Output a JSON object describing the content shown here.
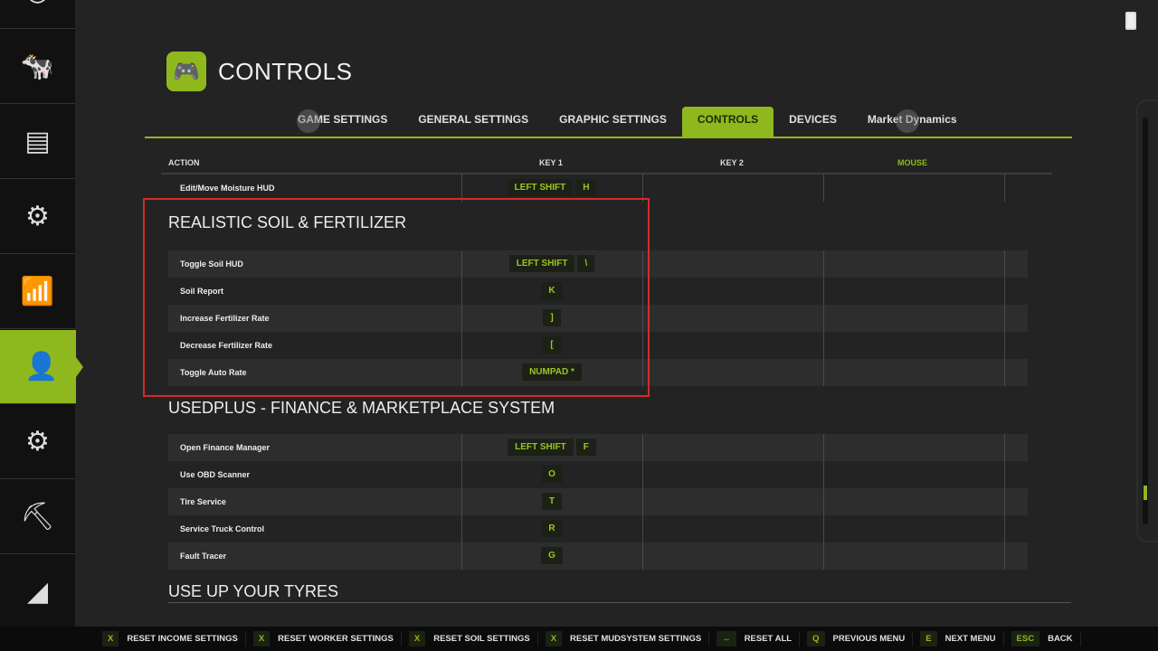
{
  "sidebar": {
    "items": [
      {
        "icon": "clock-icon",
        "glyph": "◷"
      },
      {
        "icon": "cow-icon",
        "glyph": "🐄"
      },
      {
        "icon": "contracts-icon",
        "glyph": "▤"
      },
      {
        "icon": "production-icon",
        "glyph": "⚙"
      },
      {
        "icon": "statistics-icon",
        "glyph": "📶"
      },
      {
        "icon": "workers-icon",
        "glyph": "👤"
      },
      {
        "icon": "settings-icon",
        "glyph": "⚙"
      },
      {
        "icon": "excavator-icon",
        "glyph": "⛏"
      },
      {
        "icon": "progress-icon",
        "glyph": "◢"
      }
    ],
    "active_index": 5
  },
  "header": {
    "title": "CONTROLS",
    "icon": "gamepad-icon"
  },
  "tabs": [
    {
      "label": "GAME SETTINGS"
    },
    {
      "label": "GENERAL SETTINGS"
    },
    {
      "label": "GRAPHIC SETTINGS"
    },
    {
      "label": "CONTROLS",
      "active": true
    },
    {
      "label": "DEVICES"
    },
    {
      "label": "Market Dynamics"
    }
  ],
  "table": {
    "columns": {
      "action": "ACTION",
      "key1": "KEY 1",
      "key2": "KEY 2",
      "mouse": "MOUSE"
    },
    "top_row": {
      "action": "Edit/Move Moisture HUD",
      "keys": [
        "LEFT SHIFT",
        "H"
      ]
    },
    "sections": [
      {
        "title": "REALISTIC SOIL & FERTILIZER",
        "rows": [
          {
            "action": "Toggle Soil HUD",
            "keys": [
              "LEFT SHIFT",
              "\\"
            ]
          },
          {
            "action": "Soil Report",
            "keys": [
              "K"
            ]
          },
          {
            "action": "Increase Fertilizer Rate",
            "keys": [
              "]"
            ]
          },
          {
            "action": "Decrease Fertilizer Rate",
            "keys": [
              "["
            ]
          },
          {
            "action": "Toggle Auto Rate",
            "keys": [
              "NUMPAD *"
            ]
          }
        ]
      },
      {
        "title": "USEDPLUS - FINANCE & MARKETPLACE SYSTEM",
        "rows": [
          {
            "action": "Open Finance Manager",
            "keys": [
              "LEFT SHIFT",
              "F"
            ]
          },
          {
            "action": "Use OBD Scanner",
            "keys": [
              "O"
            ]
          },
          {
            "action": "Tire Service",
            "keys": [
              "T"
            ]
          },
          {
            "action": "Service Truck Control",
            "keys": [
              "R"
            ]
          },
          {
            "action": "Fault Tracer",
            "keys": [
              "G"
            ]
          }
        ]
      },
      {
        "title": "USE UP YOUR TYRES",
        "rows": []
      }
    ]
  },
  "footer": [
    {
      "key": "X",
      "label": "RESET INCOME SETTINGS"
    },
    {
      "key": "X",
      "label": "RESET WORKER SETTINGS"
    },
    {
      "key": "X",
      "label": "RESET SOIL SETTINGS"
    },
    {
      "key": "X",
      "label": "RESET MUDSYSTEM SETTINGS"
    },
    {
      "key": "↔",
      "label": "RESET ALL"
    },
    {
      "key": "Q",
      "label": "PREVIOUS MENU"
    },
    {
      "key": "E",
      "label": "NEXT MENU"
    },
    {
      "key": "ESC",
      "label": "BACK"
    }
  ],
  "colors": {
    "accent": "#8fb81e",
    "highlight_box": "#d62a2a",
    "background": "#232323"
  },
  "scroll_position": 0.9
}
